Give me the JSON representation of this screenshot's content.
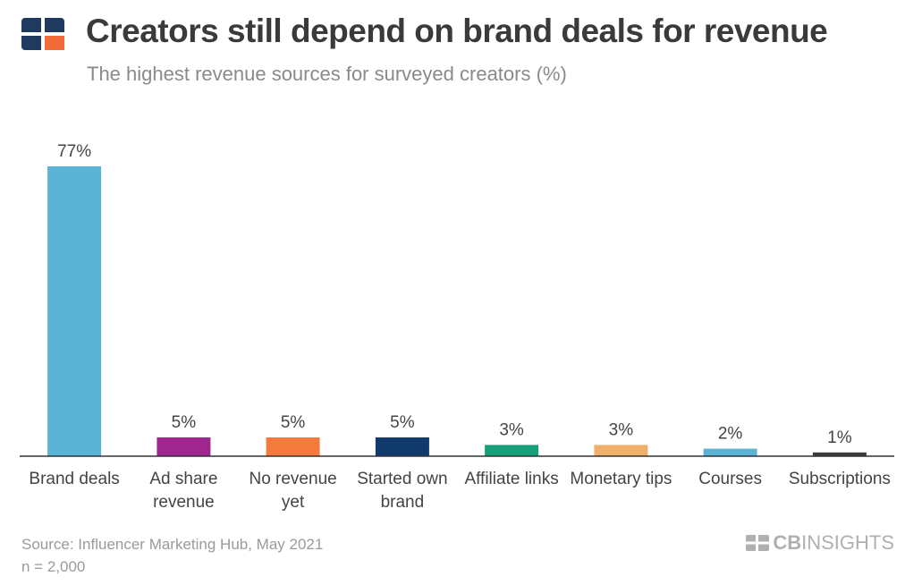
{
  "header": {
    "title": "Creators still depend on brand deals for revenue",
    "subtitle": "The highest revenue sources for surveyed creators (%)"
  },
  "footer": {
    "source": "Source: Influencer Marketing Hub, May 2021",
    "n": "n = 2,000",
    "brand_bold": "CB",
    "brand_rest": "INSIGHTS"
  },
  "colors": {
    "logo_dark": "#1f3a5f",
    "logo_accent": "#f26b3a",
    "axis": "#333333",
    "label_text": "#444444",
    "value_text": "#444444"
  },
  "chart_data": {
    "type": "bar",
    "title": "",
    "xlabel": "",
    "ylabel": "",
    "ylim": [
      0,
      77
    ],
    "grid": false,
    "categories": [
      [
        "Brand deals"
      ],
      [
        "Ad share",
        "revenue"
      ],
      [
        "No revenue",
        "yet"
      ],
      [
        "Started own",
        "brand"
      ],
      [
        "Affiliate links"
      ],
      [
        "Monetary tips"
      ],
      [
        "Courses"
      ],
      [
        "Subscriptions"
      ]
    ],
    "values": [
      77,
      5,
      5,
      5,
      3,
      3,
      2,
      1
    ],
    "value_labels": [
      "77%",
      "5%",
      "5%",
      "5%",
      "3%",
      "3%",
      "2%",
      "1%"
    ],
    "bar_colors": [
      "#5ab4d6",
      "#a0268f",
      "#f47a3d",
      "#0f3a6b",
      "#16a07a",
      "#f0b06a",
      "#5ab4d6",
      "#3a3a3a"
    ]
  }
}
